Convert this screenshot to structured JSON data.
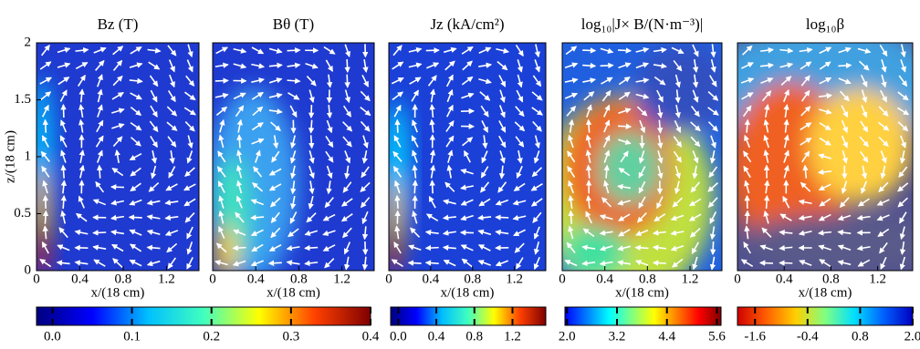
{
  "chart_data": [
    {
      "type": "heatmap",
      "title": "Bz (T)",
      "xlabel": "x/(18 cm)",
      "ylabel": "z/(18 cm)",
      "xlim": [
        0,
        1.5
      ],
      "ylim": [
        0,
        2
      ],
      "xticks": [
        0,
        0.4,
        0.8,
        1.2
      ],
      "yticks": [
        0,
        0.5,
        1,
        1.5,
        2
      ],
      "colorbar": {
        "lim": [
          -0.02,
          0.4
        ],
        "ticks": [
          {
            "value": 0,
            "label": "0.0"
          },
          0.1,
          0.2,
          0.3,
          0.4
        ],
        "colormap": [
          "#00007f",
          "#0000ff",
          "#00bfff",
          "#40ffbf",
          "#ffff00",
          "#ff4000",
          "#7f0000"
        ]
      }
    },
    {
      "type": "heatmap",
      "title": "Bθ (T)",
      "xlabel": "x/(18 cm)",
      "xlim": [
        0,
        1.5
      ],
      "xticks": [
        0,
        0.4,
        0.8,
        1.2
      ]
    },
    {
      "type": "heatmap",
      "title": "Jz (kA/cm²)",
      "xlabel": "x/(18 cm)",
      "xlim": [
        0,
        1.5
      ],
      "xticks": [
        0,
        0.4,
        0.8,
        1.2
      ],
      "colorbar": {
        "lim": [
          -0.08,
          1.55
        ],
        "ticks": [
          {
            "value": 0,
            "label": "0.0"
          },
          0.4,
          0.8,
          1.2
        ],
        "colormap": [
          "#00007f",
          "#0000ff",
          "#00bfff",
          "#40ffbf",
          "#ffff00",
          "#ff4000",
          "#7f0000"
        ]
      }
    },
    {
      "type": "heatmap",
      "title": "log₁₀|J× B/(N·m⁻³)|",
      "xlabel": "x/(18 cm)",
      "xlim": [
        0,
        1.5
      ],
      "xticks": [
        0,
        0.4,
        0.8,
        1.2
      ],
      "colorbar": {
        "lim": [
          1.95,
          5.7
        ],
        "ticks": [
          {
            "value": 2,
            "label": "2.0"
          },
          3.2,
          4.4,
          5.6
        ],
        "colormap": [
          "#0000ff",
          "#0080ff",
          "#00ffff",
          "#80ff80",
          "#ffff00",
          "#ff8000",
          "#ff0000",
          "#7f0000"
        ]
      }
    },
    {
      "type": "heatmap",
      "title": "log₁₀β",
      "xlabel": "x/(18 cm)",
      "xlim": [
        0,
        1.5
      ],
      "xticks": [
        0,
        0.4,
        0.8,
        1.2
      ],
      "colorbar": {
        "lim": [
          -2,
          2
        ],
        "ticks": [
          -1.6,
          -0.4,
          0.8,
          {
            "value": 2,
            "label": "2.0"
          }
        ],
        "colormap": [
          "#d00000",
          "#ff6000",
          "#ffd000",
          "#80ff80",
          "#00e0ff",
          "#0060ff",
          "#0000c0"
        ]
      }
    }
  ]
}
